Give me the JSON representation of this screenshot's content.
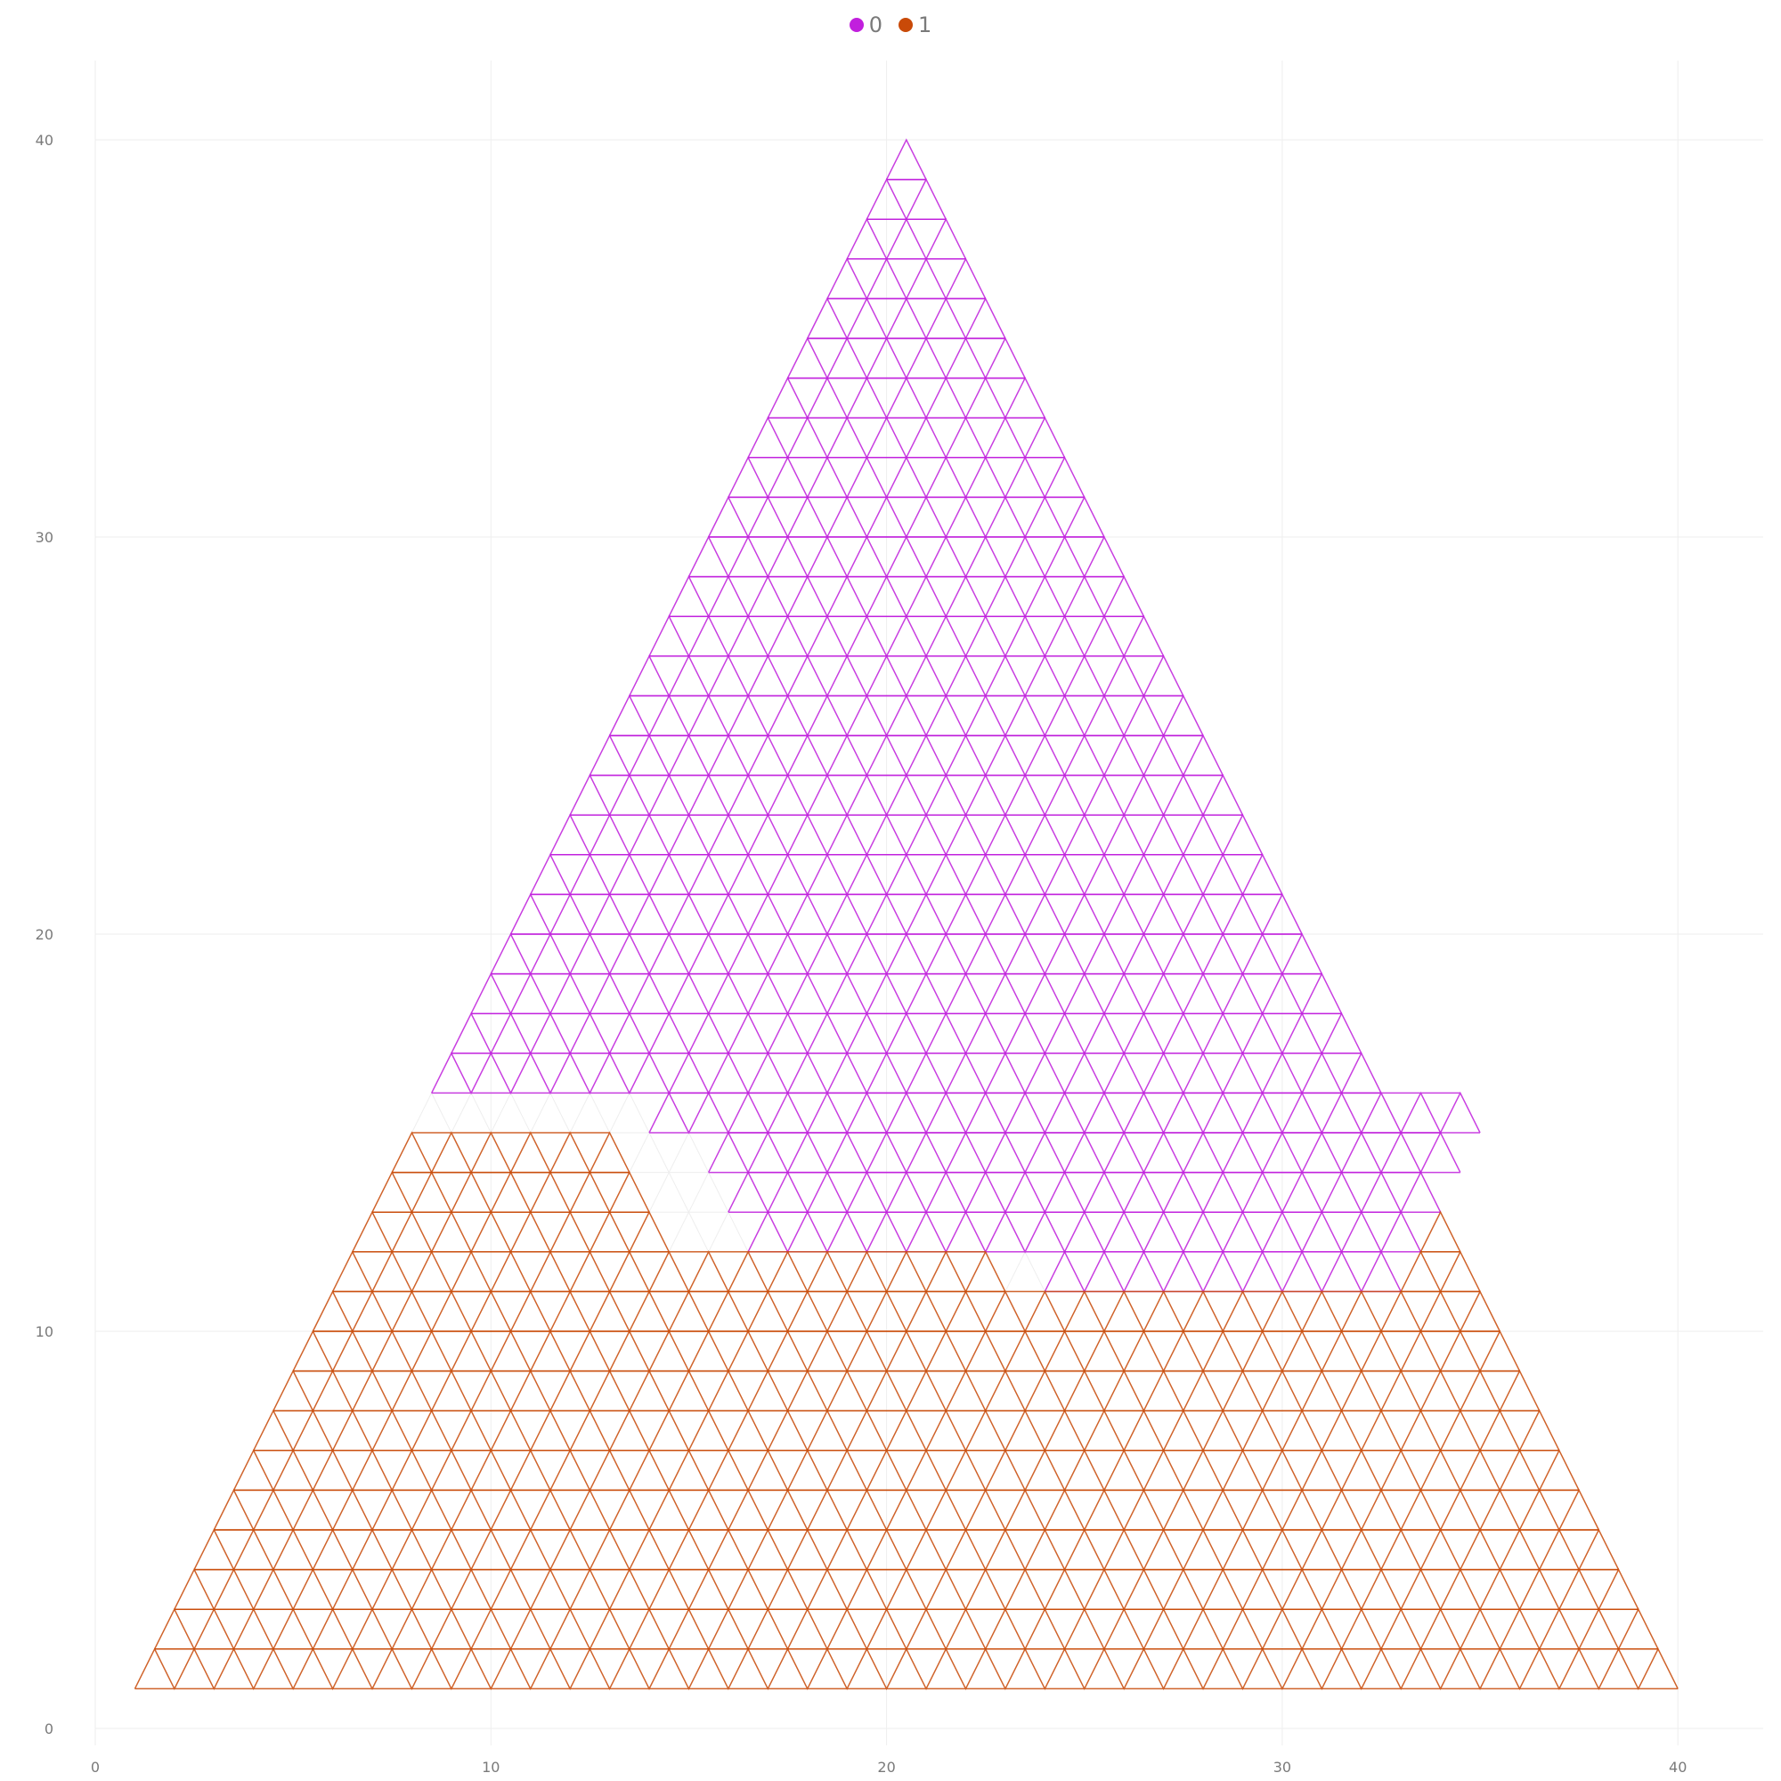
{
  "chart_data": {
    "type": "line",
    "title": "",
    "xlabel": "",
    "ylabel": "",
    "xlim": [
      0,
      42
    ],
    "ylim": [
      -0.4,
      42
    ],
    "x_ticks": [
      "0",
      "10",
      "20",
      "30",
      "40"
    ],
    "y_ticks": [
      "0",
      "10",
      "20",
      "30",
      "40"
    ],
    "grid": true,
    "legend_position": "top-center",
    "description_of_marks": "triangular lattice of small equilateral triangles of side 1 inside a large triangle with vertices (1,1), (40,1), (20.5,40); each row of small triangles is colored by series",
    "lattice": {
      "base_left": [
        1,
        1
      ],
      "base_right": [
        40,
        1
      ],
      "apex": [
        20.5,
        40
      ],
      "step": 1
    },
    "series": [
      {
        "name": "0",
        "color": "#c11fdd",
        "rows": [
          {
            "y_bottom": 11,
            "x_from": 24.0,
            "x_to": 33.0
          },
          {
            "y_bottom": 12,
            "x_from": 16.5,
            "x_to": 33.5
          },
          {
            "y_bottom": 13,
            "x_from": 16.0,
            "x_to": 34.0
          },
          {
            "y_bottom": 14,
            "x_from": 15.5,
            "x_to": 34.5
          },
          {
            "y_bottom": 15,
            "x_from": 14.0,
            "x_to": 35.0
          },
          {
            "y_bottom": 16,
            "x_from": 8.5,
            "x_to": 32.5
          },
          {
            "y_bottom": 17,
            "x_from": 9.0,
            "x_to": 32.0
          },
          {
            "y_bottom": 18,
            "x_from": 9.5,
            "x_to": 31.5
          },
          {
            "y_bottom": 19,
            "x_from": 10.0,
            "x_to": 31.0
          },
          {
            "y_bottom": 20,
            "x_from": 10.5,
            "x_to": 30.5
          },
          {
            "y_bottom": 21,
            "x_from": 11.0,
            "x_to": 30.0
          },
          {
            "y_bottom": 22,
            "x_from": 11.5,
            "x_to": 29.5
          },
          {
            "y_bottom": 23,
            "x_from": 12.0,
            "x_to": 29.0
          },
          {
            "y_bottom": 24,
            "x_from": 12.5,
            "x_to": 28.5
          },
          {
            "y_bottom": 25,
            "x_from": 13.0,
            "x_to": 28.0
          },
          {
            "y_bottom": 26,
            "x_from": 13.5,
            "x_to": 27.5
          },
          {
            "y_bottom": 27,
            "x_from": 14.0,
            "x_to": 27.0
          },
          {
            "y_bottom": 28,
            "x_from": 14.5,
            "x_to": 26.5
          },
          {
            "y_bottom": 29,
            "x_from": 15.0,
            "x_to": 26.0
          },
          {
            "y_bottom": 30,
            "x_from": 15.5,
            "x_to": 25.5
          },
          {
            "y_bottom": 31,
            "x_from": 16.0,
            "x_to": 25.0
          },
          {
            "y_bottom": 32,
            "x_from": 16.5,
            "x_to": 24.5
          },
          {
            "y_bottom": 33,
            "x_from": 17.0,
            "x_to": 24.0
          },
          {
            "y_bottom": 34,
            "x_from": 17.5,
            "x_to": 23.5
          },
          {
            "y_bottom": 35,
            "x_from": 18.0,
            "x_to": 23.0
          },
          {
            "y_bottom": 36,
            "x_from": 18.5,
            "x_to": 22.5
          },
          {
            "y_bottom": 37,
            "x_from": 19.0,
            "x_to": 22.0
          },
          {
            "y_bottom": 38,
            "x_from": 19.5,
            "x_to": 21.5
          },
          {
            "y_bottom": 39,
            "x_from": 20.0,
            "x_to": 21.0
          }
        ]
      },
      {
        "name": "1",
        "color": "#c94a08",
        "rows": [
          {
            "y_bottom": 1,
            "x_from": 1.0,
            "x_to": 40.0
          },
          {
            "y_bottom": 2,
            "x_from": 1.5,
            "x_to": 39.5
          },
          {
            "y_bottom": 3,
            "x_from": 2.0,
            "x_to": 39.0
          },
          {
            "y_bottom": 4,
            "x_from": 2.5,
            "x_to": 38.5
          },
          {
            "y_bottom": 5,
            "x_from": 3.0,
            "x_to": 38.0
          },
          {
            "y_bottom": 6,
            "x_from": 3.5,
            "x_to": 37.5
          },
          {
            "y_bottom": 7,
            "x_from": 4.0,
            "x_to": 37.0
          },
          {
            "y_bottom": 8,
            "x_from": 4.5,
            "x_to": 36.5
          },
          {
            "y_bottom": 9,
            "x_from": 5.0,
            "x_to": 36.0
          },
          {
            "y_bottom": 10,
            "x_from": 5.5,
            "x_to": 35.5
          },
          {
            "y_bottom": 11,
            "x_from": 6.0,
            "x_to": 23.0
          },
          {
            "y_bottom": 11,
            "x_from": 33.0,
            "x_to": 35.0
          },
          {
            "y_bottom": 12,
            "x_from": 6.5,
            "x_to": 14.5
          },
          {
            "y_bottom": 12,
            "x_from": 33.5,
            "x_to": 34.5
          },
          {
            "y_bottom": 13,
            "x_from": 7.0,
            "x_to": 14.0
          },
          {
            "y_bottom": 14,
            "x_from": 7.5,
            "x_to": 13.5
          }
        ]
      }
    ]
  }
}
